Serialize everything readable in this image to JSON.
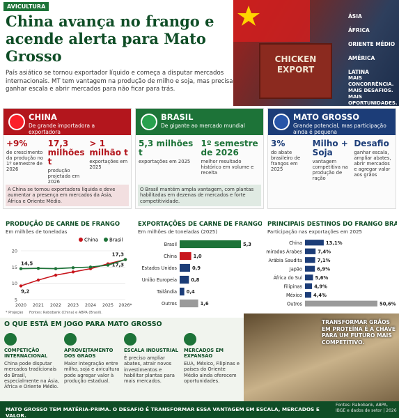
{
  "header": {
    "tag": "AVICULTURA",
    "title": "China avança no frango e acende alerta para Mato Grosso",
    "subtitle": "País asiático se tornou exportador líquido e começa a disputar mercados internacionais. MT tem vantagem na produção de milho e soja, mas precisa ganhar escala e abrir mercados para não ficar para trás.",
    "container_text": "CHICKEN EXPORT",
    "markets": [
      "ÁSIA",
      "ÁFRICA",
      "ORIENTE MÉDIO",
      "AMÉRICA LATINA"
    ],
    "slogan": "MAIS CONCORRÊNCIA. MAIS DESAFIOS. MAIS OPORTUNIDADES."
  },
  "panels": [
    {
      "title": "CHINA",
      "subtitle": "De grande importadora a exportadora",
      "color": "#b3161d",
      "stats": [
        {
          "value": "+9%",
          "desc": "de crescimento da produção no 1º semestre de 2026"
        },
        {
          "value": "17,3 milhões t",
          "desc": "produção projetada em 2026"
        },
        {
          "value": "> 1 milhão t",
          "desc": "exportações em 2025"
        }
      ],
      "note": "A China se tornou exportadora líquida e deve aumentar a presença em mercados da Ásia, África e Oriente Médio."
    },
    {
      "title": "BRASIL",
      "subtitle": "De gigante ao mercado mundial",
      "color": "#1d7338",
      "stats": [
        {
          "value": "5,3 milhões t",
          "desc": "exportações em 2025"
        },
        {
          "value": "1º semestre de 2026",
          "desc": "melhor resultado histórico em volume e receita"
        }
      ],
      "note": "O Brasil mantém ampla vantagem, com plantas habilitadas em dezenas de mercados e forte competitividade."
    },
    {
      "title": "MATO GROSSO",
      "subtitle": "Grande potencial, mas participação ainda é pequena",
      "color": "#1c3d78",
      "stats": [
        {
          "value": "3%",
          "desc": "do abate brasileiro de frangos em 2025"
        },
        {
          "value": "Milho + Soja",
          "desc": "vantagem competitiva na produção de ração"
        },
        {
          "value": "Desafio",
          "desc": "ganhar escala, ampliar abates, abrir mercados e agregar valor aos grãos"
        }
      ]
    }
  ],
  "chart_data": [
    {
      "type": "line",
      "title": "PRODUÇÃO DE CARNE DE FRANGO",
      "subtitle": "Em milhões de toneladas",
      "categories": [
        "2020",
        "2021",
        "2022",
        "2023",
        "2024",
        "2025",
        "2026*"
      ],
      "series": [
        {
          "name": "China",
          "color": "#c8161d",
          "values": [
            9.2,
            11.0,
            12.5,
            13.5,
            14.5,
            16.0,
            17.3
          ],
          "value_labels": [
            "9,2",
            null,
            null,
            null,
            null,
            null,
            "17,3"
          ]
        },
        {
          "name": "Brasil",
          "color": "#1d7338",
          "values": [
            14.5,
            14.6,
            14.5,
            14.8,
            15.0,
            15.6,
            17.3
          ],
          "value_labels": [
            "14,5",
            null,
            null,
            null,
            null,
            null,
            "17,3"
          ]
        }
      ],
      "ylim": [
        5,
        20
      ],
      "yticks": [
        5,
        10,
        15,
        20
      ],
      "grid": true,
      "notes": [
        "* Projeção",
        "Fontes: Rabobank (China) e ABPA (Brasil)."
      ]
    },
    {
      "type": "hbar",
      "title": "EXPORTAÇÕES DE CARNE DE FRANGO",
      "subtitle": "Em milhões de toneladas (2025)",
      "categories": [
        "Brasil",
        "China",
        "Estados Unidos",
        "União Europeia",
        "Tailândia",
        "Outros"
      ],
      "values": [
        5.3,
        1.0,
        0.9,
        0.8,
        0.4,
        1.6
      ],
      "value_labels": [
        "5,3",
        "1,0",
        "0,9",
        "0,8",
        "0,4",
        "1,6"
      ],
      "colors": [
        "#1d7338",
        "#c8161d",
        "#1c3d78",
        "#1c3d78",
        "#1c3d78",
        "#9a9a9a"
      ]
    },
    {
      "type": "hbar",
      "title": "PRINCIPAIS DESTINOS DO FRANGO BRASILEIRO",
      "subtitle": "Participação nas exportações em 2025",
      "categories": [
        "China",
        "Emirados Árabes",
        "Arábia Saudita",
        "Japão",
        "África do Sul",
        "Filipinas",
        "México",
        "Outros"
      ],
      "values": [
        13.1,
        7.4,
        7.1,
        6.9,
        5.6,
        4.9,
        4.4,
        50.6
      ],
      "value_labels": [
        "13,1%",
        "7,4%",
        "7,1%",
        "6,9%",
        "5,6%",
        "4,9%",
        "4,4%",
        "50,6%"
      ],
      "colors": [
        "#1c3d78",
        "#1c3d78",
        "#1c3d78",
        "#1c3d78",
        "#1c3d78",
        "#1c3d78",
        "#1c3d78",
        "#9a9a9a"
      ]
    }
  ],
  "impact": {
    "title": "O QUE ESTÁ EM JOGO PARA MATO GROSSO",
    "items": [
      {
        "title": "COMPETIÇÃO INTERNACIONAL",
        "text": "China pode disputar mercados tradicionais do Brasil, especialmente na Ásia, África e Oriente Médio."
      },
      {
        "title": "APROVEITAMENTO DOS GRÃOS",
        "text": "Maior integração entre milho, soja e avicultura pode agregar valor à produção estadual."
      },
      {
        "title": "ESCALA INDUSTRIAL",
        "text": "É preciso ampliar abates, atrair novos investimentos e habilitar plantas para mais mercados."
      },
      {
        "title": "MERCADOS EM EXPANSÃO",
        "text": "EUA, México, Filipinas e países do Oriente Médio ainda oferecem oportunidades."
      }
    ],
    "caption": "TRANSFORMAR GRÃOS EM PROTEÍNA É A CHAVE PARA UM FUTURO MAIS COMPETITIVO."
  },
  "footer": {
    "text": "MATO GROSSO TEM MATÉRIA-PRIMA. O DESAFIO É TRANSFORMAR ESSA VANTAGEM EM ESCALA, MERCADOS E VALOR.",
    "sources": "Fontes: Rabobank, ABPA, IBGE e dados de setor | 2026"
  }
}
